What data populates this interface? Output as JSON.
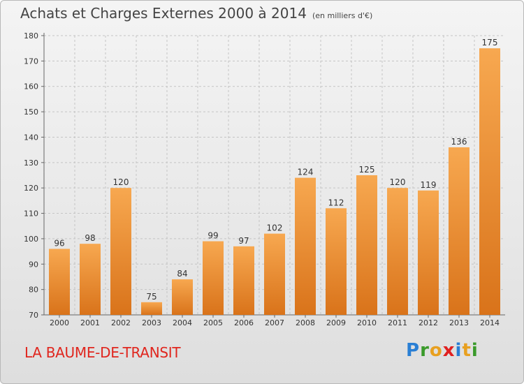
{
  "header": {
    "title": "Achats et Charges Externes 2000 à 2014",
    "subtitle": "(en milliers d'€)"
  },
  "footer": {
    "place": "LA BAUME-DE-TRANSIT",
    "logo_letters": [
      {
        "ch": "P",
        "color": "#2a7fd4"
      },
      {
        "ch": "r",
        "color": "#3a9a2a"
      },
      {
        "ch": "o",
        "color": "#e8a020"
      },
      {
        "ch": "x",
        "color": "#e02020"
      },
      {
        "ch": "i",
        "color": "#2a7fd4"
      },
      {
        "ch": "t",
        "color": "#e8a020"
      },
      {
        "ch": "i",
        "color": "#3a9a2a"
      }
    ]
  },
  "chart_data": {
    "type": "bar",
    "categories": [
      "2000",
      "2001",
      "2002",
      "2003",
      "2004",
      "2005",
      "2006",
      "2007",
      "2008",
      "2009",
      "2010",
      "2011",
      "2012",
      "2013",
      "2014"
    ],
    "values": [
      96,
      98,
      120,
      75,
      84,
      99,
      97,
      102,
      124,
      112,
      125,
      120,
      119,
      136,
      175
    ],
    "ylim": [
      70,
      180
    ],
    "yticks": [
      70,
      80,
      90,
      100,
      110,
      120,
      130,
      140,
      150,
      160,
      170,
      180
    ],
    "grid": true,
    "bar_color_top": "#f7a850",
    "bar_color_bottom": "#d9731a"
  }
}
